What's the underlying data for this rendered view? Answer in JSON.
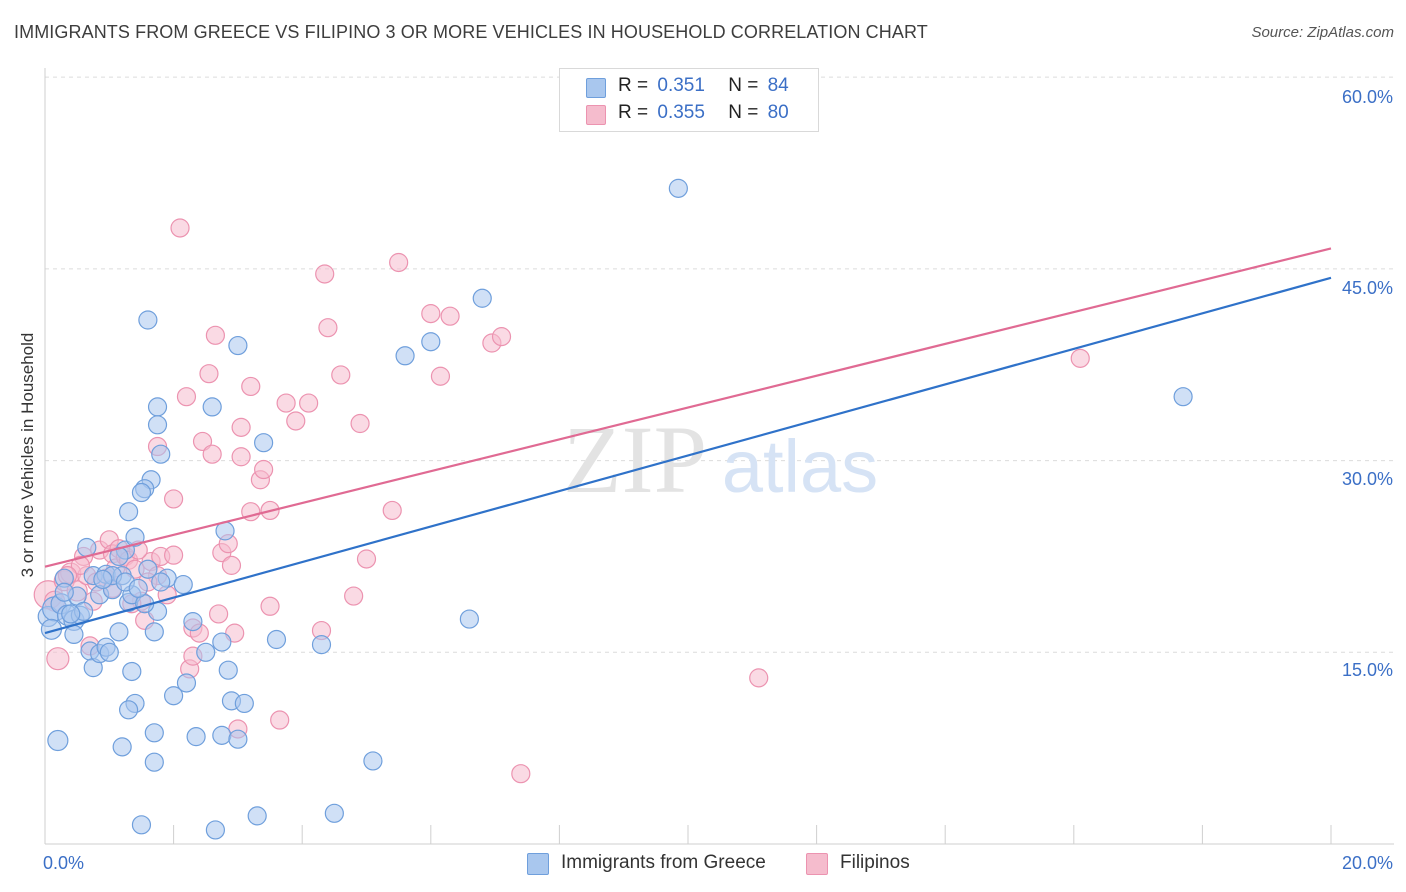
{
  "title": "IMMIGRANTS FROM GREECE VS FILIPINO 3 OR MORE VEHICLES IN HOUSEHOLD CORRELATION CHART",
  "source": "Source: ZipAtlas.com",
  "watermark": {
    "zip": "ZIP",
    "atlas": "atlas"
  },
  "colors": {
    "blue_fill": "#a9c7ee",
    "blue_stroke": "#6f9fdc",
    "blue_line": "#2f72c9",
    "pink_fill": "#f5bccd",
    "pink_stroke": "#ec93b0",
    "pink_line": "#e06a93",
    "axis_text": "#3b6fc6",
    "grid": "#dcdcdc"
  },
  "stats": [
    {
      "r_label": "R =",
      "r_value": "0.351",
      "n_label": "N =",
      "n_value": "84",
      "color": "blue"
    },
    {
      "r_label": "R =",
      "r_value": "0.355",
      "n_label": "N =",
      "n_value": "80",
      "color": "pink"
    }
  ],
  "x_ticks": {
    "min_label": "0.0%",
    "max_label": "20.0%"
  },
  "y_ticks": [
    "60.0%",
    "45.0%",
    "30.0%",
    "15.0%"
  ],
  "chart_data": {
    "type": "scatter",
    "title": "IMMIGRANTS FROM GREECE VS FILIPINO 3 OR MORE VEHICLES IN HOUSEHOLD CORRELATION CHART",
    "xlabel": "",
    "ylabel": "3 or more Vehicles in Household",
    "xlim": [
      0,
      20
    ],
    "ylim": [
      0,
      61.5
    ],
    "y_gridlines": [
      15,
      30,
      45,
      60
    ],
    "legend_position": "bottom-center",
    "series": [
      {
        "name": "Immigrants from Greece",
        "color": "blue",
        "trend": {
          "x": [
            0,
            20
          ],
          "y": [
            16.5,
            44.3
          ]
        },
        "points": [
          [
            0.05,
            17.8,
            10
          ],
          [
            0.15,
            18.4,
            12
          ],
          [
            0.25,
            18.8,
            10
          ],
          [
            0.1,
            16.8,
            10
          ],
          [
            0.35,
            17.9,
            10
          ],
          [
            0.45,
            17.5,
            10
          ],
          [
            0.55,
            17.9,
            9
          ],
          [
            0.3,
            20.8,
            9
          ],
          [
            0.5,
            19.4,
            9
          ],
          [
            0.65,
            23.2,
            9
          ],
          [
            0.75,
            21.0,
            9
          ],
          [
            0.85,
            19.5,
            9
          ],
          [
            0.95,
            21.1,
            9
          ],
          [
            1.05,
            19.9,
            9
          ],
          [
            1.2,
            21.0,
            9
          ],
          [
            1.25,
            23.0,
            9
          ],
          [
            1.3,
            18.9,
            9
          ],
          [
            1.35,
            19.5,
            9
          ],
          [
            1.4,
            24.0,
            9
          ],
          [
            0.45,
            16.4,
            9
          ],
          [
            0.7,
            15.1,
            9
          ],
          [
            0.75,
            13.8,
            9
          ],
          [
            0.85,
            14.9,
            9
          ],
          [
            0.95,
            15.4,
            9
          ],
          [
            1.0,
            15.0,
            9
          ],
          [
            1.15,
            16.6,
            9
          ],
          [
            1.35,
            13.5,
            9
          ],
          [
            1.4,
            11.0,
            9
          ],
          [
            1.3,
            10.5,
            9
          ],
          [
            1.2,
            7.6,
            9
          ],
          [
            1.75,
            18.2,
            9
          ],
          [
            1.7,
            16.6,
            9
          ],
          [
            1.9,
            20.8,
            9
          ],
          [
            2.15,
            20.3,
            9
          ],
          [
            1.8,
            30.5,
            9
          ],
          [
            1.75,
            34.2,
            9
          ],
          [
            1.75,
            32.8,
            9
          ],
          [
            1.65,
            28.5,
            9
          ],
          [
            1.55,
            27.8,
            9
          ],
          [
            1.5,
            27.5,
            9
          ],
          [
            1.3,
            26.0,
            9
          ],
          [
            1.6,
            21.5,
            9
          ],
          [
            1.6,
            41.0,
            9
          ],
          [
            1.7,
            8.7,
            9
          ],
          [
            1.7,
            6.4,
            9
          ],
          [
            1.5,
            1.5,
            9
          ],
          [
            2.0,
            11.6,
            9
          ],
          [
            2.2,
            12.6,
            9
          ],
          [
            2.35,
            8.4,
            9
          ],
          [
            2.5,
            15.0,
            9
          ],
          [
            2.6,
            34.2,
            9
          ],
          [
            2.75,
            15.8,
            9
          ],
          [
            2.75,
            8.5,
            9
          ],
          [
            2.85,
            13.6,
            9
          ],
          [
            2.9,
            11.2,
            9
          ],
          [
            2.8,
            24.5,
            9
          ],
          [
            3.0,
            39.0,
            9
          ],
          [
            3.0,
            8.2,
            9
          ],
          [
            3.1,
            11.0,
            9
          ],
          [
            3.3,
            2.2,
            9
          ],
          [
            3.4,
            31.4,
            9
          ],
          [
            3.6,
            16.0,
            9
          ],
          [
            2.65,
            1.1,
            9
          ],
          [
            4.3,
            15.6,
            9
          ],
          [
            4.5,
            2.4,
            9
          ],
          [
            5.1,
            6.5,
            9
          ],
          [
            5.6,
            38.2,
            9
          ],
          [
            6.0,
            39.3,
            9
          ],
          [
            6.6,
            17.6,
            9
          ],
          [
            6.8,
            42.7,
            9
          ],
          [
            9.85,
            51.3,
            9
          ],
          [
            17.7,
            35.0,
            9
          ],
          [
            0.2,
            8.1,
            10
          ],
          [
            0.3,
            19.7,
            9
          ],
          [
            0.6,
            18.2,
            9
          ],
          [
            0.4,
            18.0,
            9
          ],
          [
            1.05,
            21.0,
            9
          ],
          [
            1.15,
            22.5,
            9
          ],
          [
            1.25,
            20.5,
            9
          ],
          [
            0.9,
            20.7,
            9
          ],
          [
            1.55,
            18.8,
            9
          ],
          [
            1.8,
            20.5,
            9
          ],
          [
            1.45,
            20.0,
            9
          ],
          [
            2.3,
            17.4,
            9
          ]
        ]
      },
      {
        "name": "Filipinos",
        "color": "pink",
        "trend": {
          "x": [
            0,
            20
          ],
          "y": [
            21.7,
            46.6
          ]
        },
        "points": [
          [
            0.05,
            19.5,
            14
          ],
          [
            0.2,
            14.5,
            11
          ],
          [
            0.3,
            20.6,
            10
          ],
          [
            0.4,
            21.2,
            10
          ],
          [
            0.5,
            19.8,
            10
          ],
          [
            0.6,
            22.5,
            9
          ],
          [
            0.65,
            21.0,
            9
          ],
          [
            0.75,
            19.0,
            9
          ],
          [
            0.85,
            23.0,
            9
          ],
          [
            0.95,
            20.8,
            9
          ],
          [
            1.0,
            23.8,
            9
          ],
          [
            1.05,
            22.7,
            9
          ],
          [
            1.1,
            21.6,
            9
          ],
          [
            1.15,
            23.1,
            9
          ],
          [
            1.25,
            22.5,
            9
          ],
          [
            1.3,
            22.2,
            9
          ],
          [
            1.4,
            21.5,
            9
          ],
          [
            1.5,
            19.0,
            9
          ],
          [
            1.55,
            17.5,
            9
          ],
          [
            1.65,
            22.1,
            9
          ],
          [
            1.75,
            21.0,
            9
          ],
          [
            1.8,
            22.5,
            9
          ],
          [
            1.6,
            20.5,
            9
          ],
          [
            1.75,
            31.1,
            9
          ],
          [
            2.0,
            22.6,
            9
          ],
          [
            2.0,
            27.0,
            9
          ],
          [
            2.1,
            48.2,
            9
          ],
          [
            2.2,
            35.0,
            9
          ],
          [
            2.25,
            13.7,
            9
          ],
          [
            2.3,
            16.9,
            9
          ],
          [
            2.4,
            16.5,
            9
          ],
          [
            2.45,
            31.5,
            9
          ],
          [
            2.6,
            30.5,
            9
          ],
          [
            2.55,
            36.8,
            9
          ],
          [
            2.65,
            39.8,
            9
          ],
          [
            2.7,
            18.0,
            9
          ],
          [
            2.75,
            22.8,
            9
          ],
          [
            2.85,
            23.5,
            9
          ],
          [
            2.9,
            21.8,
            9
          ],
          [
            2.95,
            16.5,
            9
          ],
          [
            3.05,
            32.6,
            9
          ],
          [
            3.05,
            30.3,
            9
          ],
          [
            3.2,
            35.8,
            9
          ],
          [
            3.2,
            26.0,
            9
          ],
          [
            3.35,
            28.5,
            9
          ],
          [
            3.4,
            29.3,
            9
          ],
          [
            3.5,
            26.1,
            9
          ],
          [
            3.5,
            18.6,
            9
          ],
          [
            3.65,
            9.7,
            9
          ],
          [
            3.75,
            34.5,
            9
          ],
          [
            3.9,
            33.1,
            9
          ],
          [
            4.1,
            34.5,
            9
          ],
          [
            4.3,
            16.7,
            9
          ],
          [
            4.4,
            40.4,
            9
          ],
          [
            4.35,
            44.6,
            9
          ],
          [
            4.6,
            36.7,
            9
          ],
          [
            4.8,
            19.4,
            9
          ],
          [
            5.0,
            22.3,
            9
          ],
          [
            4.9,
            32.9,
            9
          ],
          [
            5.4,
            26.1,
            9
          ],
          [
            5.5,
            45.5,
            9
          ],
          [
            6.0,
            41.5,
            9
          ],
          [
            6.15,
            36.6,
            9
          ],
          [
            6.3,
            41.3,
            9
          ],
          [
            6.95,
            39.2,
            9
          ],
          [
            7.1,
            39.7,
            9
          ],
          [
            7.4,
            5.5,
            9
          ],
          [
            11.1,
            13.0,
            9
          ],
          [
            16.1,
            38.0,
            9
          ],
          [
            2.3,
            14.7,
            9
          ],
          [
            3.0,
            9.0,
            9
          ],
          [
            1.35,
            18.8,
            9
          ],
          [
            0.55,
            21.8,
            9
          ],
          [
            0.8,
            20.5,
            9
          ],
          [
            1.05,
            20.0,
            9
          ],
          [
            1.45,
            23.0,
            9
          ],
          [
            1.9,
            19.5,
            9
          ],
          [
            0.35,
            21.0,
            9
          ],
          [
            0.15,
            19.0,
            10
          ],
          [
            0.7,
            15.5,
            9
          ]
        ]
      }
    ]
  }
}
